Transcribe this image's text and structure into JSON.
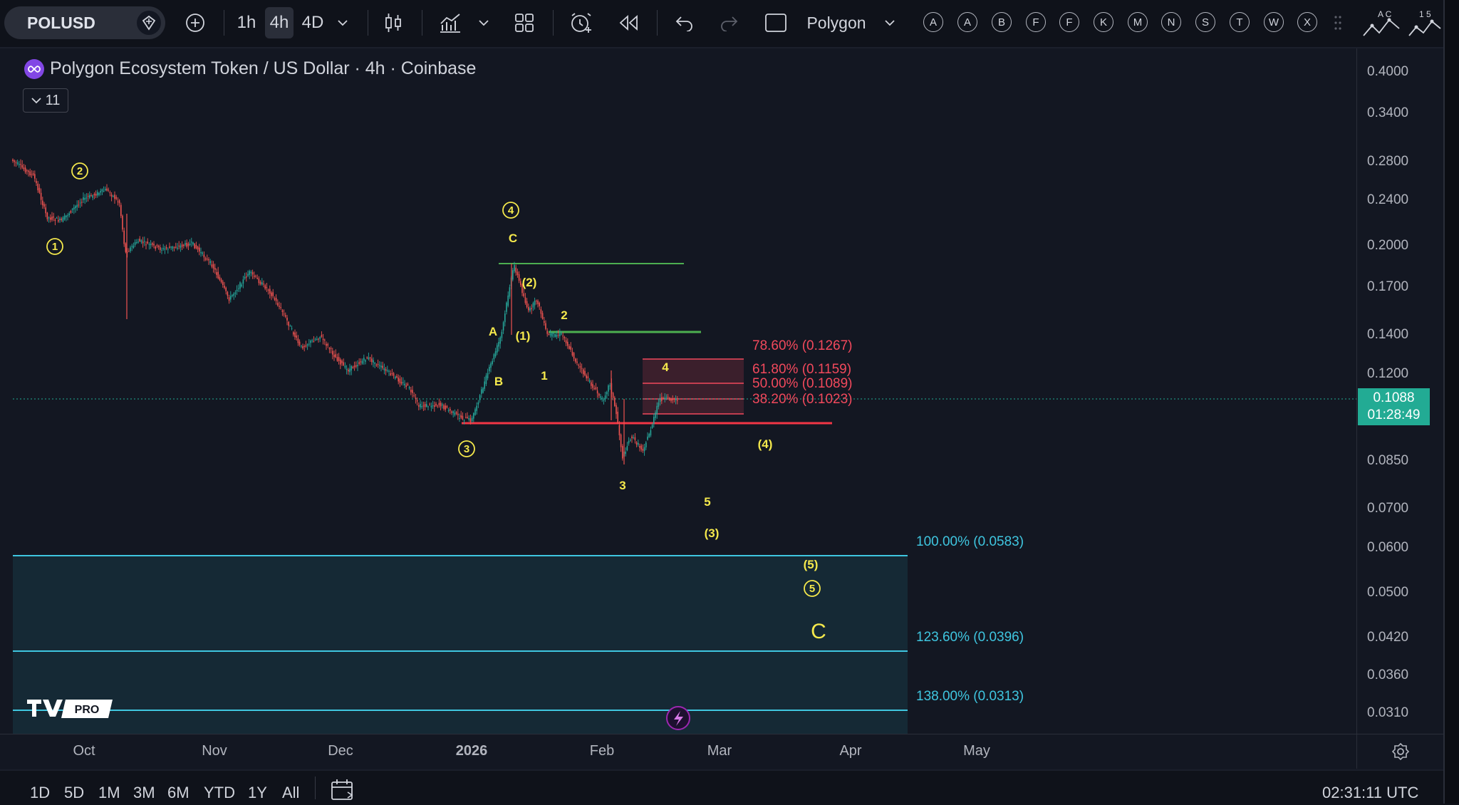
{
  "toolbar": {
    "symbol": "POLUSD",
    "intervals": [
      "1h",
      "4h",
      "4D"
    ],
    "active_interval": "4h",
    "drawing_tool": "Polygon",
    "letter_tools": [
      "A",
      "A",
      "B",
      "F",
      "F",
      "K",
      "M",
      "N",
      "S",
      "T",
      "W",
      "X"
    ],
    "fav_a": "A C",
    "fav_b": "1 5"
  },
  "legend": {
    "title": "Polygon Ecosystem Token / US Dollar · 4h · Coinbase",
    "indicator_count": "11"
  },
  "price_axis": {
    "labels": [
      "0.4000",
      "0.3400",
      "0.2800",
      "0.2400",
      "0.2000",
      "0.1700",
      "0.1400",
      "0.1200",
      "0.0850",
      "0.0700",
      "0.0600",
      "0.0500",
      "0.0420",
      "0.0360",
      "0.0310"
    ],
    "current_price": "0.1088",
    "countdown": "01:28:49"
  },
  "time_axis": {
    "labels": [
      "Oct",
      "Nov",
      "Dec",
      "2026",
      "Feb",
      "Mar",
      "Apr",
      "May"
    ]
  },
  "fib_retracement": [
    {
      "label": "78.60% (0.1267)"
    },
    {
      "label": "61.80% (0.1159)"
    },
    {
      "label": "50.00% (0.1089)"
    },
    {
      "label": "38.20% (0.1023)"
    }
  ],
  "fib_extension": [
    {
      "label": "100.00% (0.0583)"
    },
    {
      "label": "123.60% (0.0396)"
    },
    {
      "label": "138.00% (0.0313)"
    }
  ],
  "wave_labels": {
    "circ1": "1",
    "circ2": "2",
    "circ3": "3",
    "circ4": "4",
    "circ5": "5",
    "C_top": "C",
    "A": "A",
    "B": "B",
    "paren1": "(1)",
    "paren2": "(2)",
    "n1": "1",
    "n2": "2",
    "n3": "3",
    "n4": "4",
    "n5": "5",
    "paren3": "(3)",
    "paren4": "(4)",
    "paren5": "(5)",
    "C_big": "C"
  },
  "logo_text": "PRO",
  "bottom_bar": {
    "ranges": [
      "1D",
      "5D",
      "1M",
      "3M",
      "6M",
      "YTD",
      "1Y",
      "All"
    ],
    "clock": "02:31:11 UTC"
  },
  "colors": {
    "bg": "#131722",
    "wave_yellow": "#f5e94c",
    "fib_red": "#f2495c",
    "fib_cyan": "#3fc6e0",
    "green_line": "#4caf50",
    "up_candle": "#26a69a",
    "down_candle": "#ef5350"
  }
}
